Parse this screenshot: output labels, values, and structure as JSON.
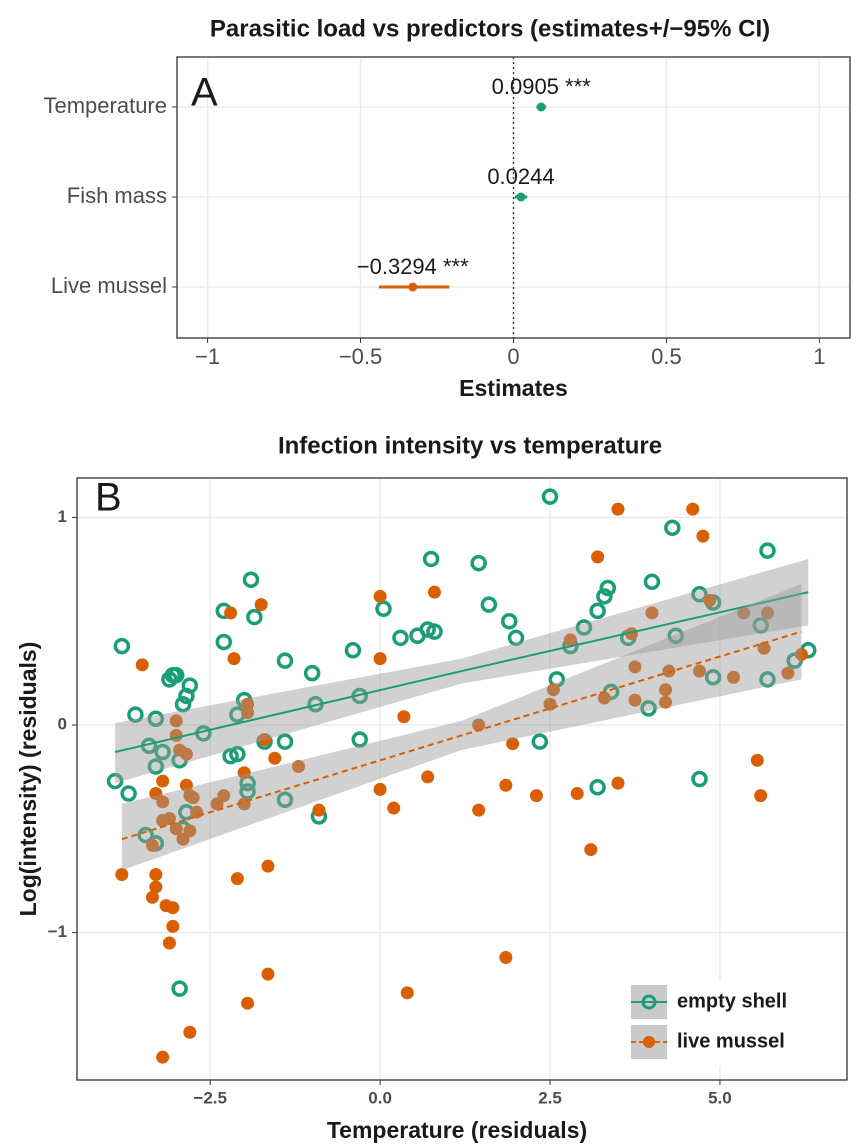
{
  "chart_data": [
    {
      "type": "forest",
      "title": "Parasitic load vs predictors (estimates+/−95% CI)",
      "panel_label": "A",
      "x_label": "Estimates",
      "categories": [
        "Temperature",
        "Fish mass",
        "Live mussel"
      ],
      "values": [
        0.0905,
        0.0244,
        -0.3294
      ],
      "ci_lower": [
        0.075,
        0.004,
        -0.44
      ],
      "ci_upper": [
        0.106,
        0.045,
        -0.21
      ],
      "value_labels": [
        "0.0905 ***",
        "0.0244",
        "−0.3294 ***"
      ],
      "colors": [
        "#1b9e77",
        "#1b9e77",
        "#d95f02"
      ],
      "xlim": [
        -1.1,
        1.1
      ],
      "xticks": [
        {
          "value": -1,
          "label": "−1"
        },
        {
          "value": -0.5,
          "label": "−0.5"
        },
        0,
        0.5,
        1
      ],
      "reference_line": 0,
      "grid": true
    },
    {
      "type": "scatter",
      "title": "Infection intensity vs temperature",
      "panel_label": "B",
      "x_label": "Temperature (residuals)",
      "y_label": "Log(intensity) (residuals)",
      "xlim": [
        -4.46,
        6.87
      ],
      "ylim": [
        -1.71,
        1.19
      ],
      "xticks": [
        {
          "value": -2.5,
          "label": "−2.5"
        },
        {
          "value": 0,
          "label": "0.0"
        },
        {
          "value": 2.5,
          "label": "2.5"
        },
        {
          "value": 5,
          "label": "5.0"
        }
      ],
      "yticks": [
        {
          "value": -1,
          "label": "−1"
        },
        0,
        1
      ],
      "grid": true,
      "legend": "bottom-right",
      "series": [
        {
          "name": "empty shell",
          "color": "#1b9e77",
          "marker": "hollow",
          "line_style": "solid",
          "x": [
            -3.8,
            -3.6,
            -3.9,
            -3.7,
            -3.4,
            -3.3,
            -3.2,
            -3.1,
            -3.05,
            -3.0,
            -2.9,
            -2.85,
            -2.8,
            -3.3,
            -2.95,
            -2.9,
            -2.85,
            -3.3,
            -3.45,
            -2.95,
            -2.3,
            -2.3,
            -2.1,
            -2.0,
            -1.9,
            -1.85,
            -2.1,
            -1.95,
            -1.95,
            -1.7,
            -1.4,
            -1.4,
            -1.4,
            -1.0,
            -0.95,
            -0.9,
            -0.4,
            -0.3,
            -0.3,
            0.05,
            0.3,
            0.55,
            0.7,
            0.75,
            0.8,
            1.45,
            1.6,
            1.9,
            2.0,
            2.35,
            2.5,
            2.8,
            2.6,
            3.0,
            3.2,
            3.3,
            3.35,
            3.2,
            3.4,
            3.65,
            3.95,
            4.0,
            4.3,
            4.35,
            4.7,
            4.9,
            4.7,
            5.6,
            5.7,
            5.7,
            6.1,
            6.3,
            4.9,
            -2.6,
            -2.2
          ],
          "values": [
            0.38,
            0.05,
            -0.27,
            -0.33,
            -0.1,
            0.03,
            -0.13,
            0.22,
            0.24,
            0.24,
            0.1,
            0.14,
            0.19,
            -0.2,
            -0.17,
            -0.5,
            -0.42,
            -0.57,
            -0.53,
            -1.27,
            0.55,
            0.4,
            0.05,
            0.12,
            0.7,
            0.52,
            -0.14,
            -0.28,
            -0.32,
            -0.08,
            -0.08,
            -0.36,
            0.31,
            0.25,
            0.1,
            -0.44,
            0.36,
            -0.07,
            0.14,
            0.56,
            0.42,
            0.43,
            0.46,
            0.8,
            0.45,
            0.78,
            0.58,
            0.5,
            0.42,
            -0.08,
            1.1,
            0.38,
            0.22,
            0.47,
            0.55,
            0.62,
            0.66,
            -0.3,
            0.16,
            0.42,
            0.08,
            0.69,
            0.95,
            0.43,
            0.63,
            0.59,
            -0.26,
            0.48,
            0.84,
            0.22,
            0.31,
            0.36,
            0.23,
            -0.04,
            -0.15
          ],
          "fit": {
            "x": [
              -3.9,
              1.2,
              6.3
            ],
            "y": [
              -0.13,
              0.26,
              0.64
            ],
            "lower": [
              -0.28,
              0.2,
              0.48
            ],
            "upper": [
              0.01,
              0.32,
              0.8
            ]
          }
        },
        {
          "name": "live mussel",
          "color": "#d95f02",
          "marker": "filled",
          "line_style": "dashed",
          "x": [
            -3.5,
            -3.8,
            -3.3,
            -3.3,
            -3.35,
            -3.15,
            -3.05,
            -3.05,
            -3.1,
            -3.2,
            -2.8,
            -3.3,
            -3.2,
            -3.2,
            -3.1,
            -3.0,
            -2.9,
            -2.8,
            -3.0,
            -3.0,
            -2.95,
            -2.85,
            -2.85,
            -2.8,
            -2.75,
            -2.7,
            -3.2,
            -3.35,
            -2.4,
            -2.3,
            -2.2,
            -2.15,
            -2.1,
            -2.0,
            -2.0,
            -1.95,
            -1.95,
            -1.95,
            -1.75,
            -1.7,
            -1.65,
            -1.65,
            -1.55,
            -1.2,
            -0.9,
            0.0,
            0.0,
            0.0,
            0.2,
            0.35,
            0.4,
            0.7,
            0.8,
            1.45,
            1.45,
            1.85,
            1.85,
            1.95,
            2.3,
            2.5,
            2.55,
            2.8,
            2.9,
            3.1,
            3.2,
            3.3,
            3.5,
            3.5,
            3.7,
            3.75,
            3.75,
            4.0,
            4.2,
            4.2,
            4.25,
            4.6,
            4.7,
            4.75,
            4.85,
            5.2,
            5.35,
            5.55,
            5.7,
            5.65,
            5.6,
            6.0,
            6.2
          ],
          "values": [
            0.29,
            -0.72,
            -0.72,
            -0.78,
            -0.83,
            -0.87,
            -0.88,
            -0.97,
            -1.05,
            -1.6,
            -1.48,
            -0.33,
            -0.27,
            -0.37,
            -0.45,
            -0.5,
            -0.55,
            -0.51,
            -0.05,
            0.02,
            -0.12,
            -0.14,
            -0.29,
            -0.34,
            -0.35,
            -0.42,
            -0.46,
            -0.58,
            -0.38,
            -0.34,
            0.54,
            0.32,
            -0.74,
            -0.23,
            -0.38,
            0.06,
            0.1,
            -1.34,
            0.58,
            -0.07,
            -0.68,
            -1.2,
            -0.16,
            -0.2,
            -0.41,
            0.62,
            0.32,
            -0.31,
            -0.4,
            0.04,
            -1.29,
            -0.25,
            0.64,
            -0.41,
            0.0,
            -0.29,
            -1.12,
            -0.09,
            -0.34,
            0.1,
            0.17,
            0.41,
            -0.33,
            -0.6,
            0.81,
            0.13,
            1.04,
            -0.28,
            0.44,
            0.28,
            0.12,
            0.54,
            0.17,
            0.11,
            0.26,
            1.04,
            0.26,
            0.91,
            0.6,
            0.23,
            0.54,
            -0.17,
            0.54,
            0.37,
            -0.34,
            0.25,
            0.34
          ],
          "fit": {
            "x": [
              -3.8,
              1.2,
              6.2
            ],
            "y": [
              -0.55,
              -0.05,
              0.45
            ],
            "lower": [
              -0.7,
              -0.12,
              0.22
            ],
            "upper": [
              -0.38,
              0.02,
              0.68
            ]
          }
        }
      ]
    }
  ]
}
